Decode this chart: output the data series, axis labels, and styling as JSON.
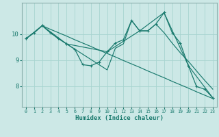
{
  "xlabel": "Humidex (Indice chaleur)",
  "bg_color": "#cce8e6",
  "line_color": "#1a7a6e",
  "grid_color": "#a8d4d0",
  "axis_color": "#8aafac",
  "line1_x": [
    0,
    1,
    2,
    3,
    4,
    5,
    6,
    7,
    8,
    9,
    10,
    11,
    12,
    13,
    14,
    15,
    16,
    17,
    18,
    19,
    20,
    21,
    22,
    23
  ],
  "line1_y": [
    9.82,
    10.05,
    10.32,
    10.05,
    9.82,
    9.62,
    9.42,
    8.82,
    8.78,
    8.92,
    9.32,
    9.65,
    9.78,
    10.52,
    10.12,
    10.12,
    10.38,
    10.82,
    10.05,
    9.65,
    8.78,
    7.98,
    7.88,
    7.55
  ],
  "line2_x": [
    0,
    1,
    2,
    3,
    4,
    5,
    6,
    7,
    8,
    9,
    10,
    11,
    12,
    13,
    14,
    15,
    16,
    17,
    18,
    19,
    20,
    21,
    22,
    23
  ],
  "line2_y": [
    9.82,
    10.05,
    10.32,
    10.18,
    10.05,
    9.92,
    9.78,
    9.65,
    9.52,
    9.38,
    9.25,
    9.12,
    8.98,
    8.85,
    8.72,
    8.58,
    8.45,
    8.32,
    8.18,
    8.05,
    7.92,
    7.78,
    7.65,
    7.52
  ],
  "line3_x": [
    0,
    2,
    5,
    10,
    14,
    17,
    20,
    23
  ],
  "line3_y": [
    9.82,
    10.32,
    9.62,
    9.32,
    10.12,
    10.82,
    8.78,
    7.55
  ],
  "line4_x": [
    0,
    1,
    2,
    3,
    4,
    5,
    6,
    7,
    8,
    9,
    10,
    11,
    12,
    13,
    14,
    15,
    16,
    17,
    18,
    19,
    20,
    21,
    22,
    23
  ],
  "line4_y": [
    9.82,
    10.05,
    10.32,
    10.05,
    9.82,
    9.62,
    9.42,
    9.22,
    9.02,
    8.82,
    8.62,
    9.45,
    9.62,
    10.52,
    10.12,
    10.12,
    10.38,
    10.05,
    9.65,
    9.28,
    8.95,
    8.58,
    8.22,
    7.88
  ],
  "xlim": [
    -0.5,
    23.5
  ],
  "ylim": [
    7.2,
    11.2
  ],
  "yticks": [
    8,
    9,
    10
  ],
  "xticks": [
    0,
    1,
    2,
    3,
    4,
    5,
    6,
    7,
    8,
    9,
    10,
    11,
    12,
    13,
    14,
    15,
    16,
    17,
    18,
    19,
    20,
    21,
    22,
    23
  ]
}
